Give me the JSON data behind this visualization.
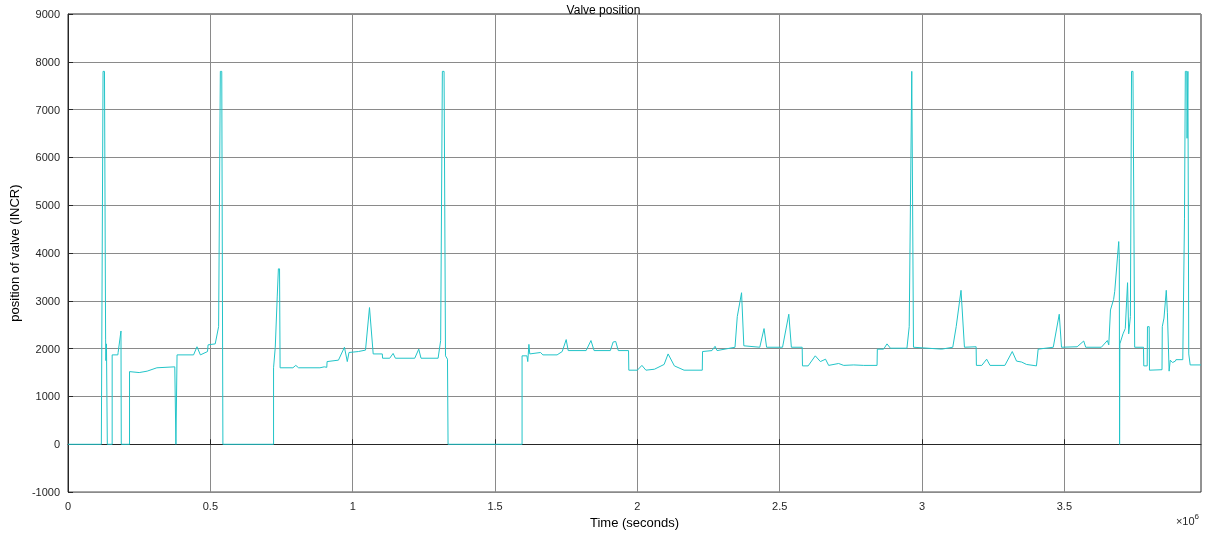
{
  "chart_data": {
    "type": "line",
    "title": "Valve position",
    "xlabel": "Time (seconds)",
    "ylabel": "position of valve (INCR)",
    "annotations": [
      "×10$^{6}$"
    ],
    "xlim": [
      0,
      3.98
    ],
    "xticks": [
      0,
      0.5,
      1,
      1.5,
      2,
      2.5,
      3,
      3.5
    ],
    "ylim": [
      -1000,
      9000
    ],
    "yticks": [
      -1000,
      0,
      1000,
      2000,
      3000,
      4000,
      5000,
      6000,
      7000,
      8000,
      9000
    ],
    "grid": true,
    "marker": "none",
    "line_style": "solid",
    "series": [
      {
        "color": "#22c4c8",
        "x": [
          0,
          0.117,
          0.123,
          0.128,
          0.132,
          0.133,
          0.135,
          0.137,
          0.138,
          0.155,
          0.155,
          0.175,
          0.176,
          0.186,
          0.187,
          0.216,
          0.216,
          0.25,
          0.278,
          0.312,
          0.375,
          0.379,
          0.383,
          0.441,
          0.453,
          0.465,
          0.49,
          0.492,
          0.517,
          0.529,
          0.535,
          0.54,
          0.544,
          0.722,
          0.722,
          0.728,
          0.735,
          0.739,
          0.743,
          0.745,
          0.79,
          0.8,
          0.81,
          0.885,
          0.9,
          0.909,
          0.91,
          0.95,
          0.971,
          0.981,
          0.987,
          1.02,
          1.045,
          1.059,
          1.072,
          1.104,
          1.105,
          1.13,
          1.142,
          1.15,
          1.218,
          1.232,
          1.24,
          1.3,
          1.309,
          1.315,
          1.321,
          1.326,
          1.333,
          1.335,
          1.595,
          1.595,
          1.612,
          1.615,
          1.619,
          1.622,
          1.66,
          1.668,
          1.718,
          1.736,
          1.75,
          1.757,
          1.82,
          1.837,
          1.848,
          1.905,
          1.915,
          1.924,
          1.933,
          1.969,
          1.97,
          2.0,
          2.016,
          2.03,
          2.06,
          2.094,
          2.108,
          2.13,
          2.164,
          2.228,
          2.229,
          2.262,
          2.273,
          2.28,
          2.316,
          2.343,
          2.351,
          2.366,
          2.374,
          2.43,
          2.445,
          2.454,
          2.51,
          2.532,
          2.541,
          2.579,
          2.58,
          2.6,
          2.625,
          2.643,
          2.661,
          2.672,
          2.707,
          2.725,
          2.76,
          2.795,
          2.842,
          2.843,
          2.865,
          2.877,
          2.889,
          2.947,
          2.955,
          2.964,
          2.97,
          3.069,
          3.108,
          3.12,
          3.137,
          3.149,
          3.19,
          3.191,
          3.21,
          3.227,
          3.239,
          3.291,
          3.317,
          3.332,
          3.35,
          3.367,
          3.402,
          3.408,
          3.461,
          3.482,
          3.49,
          3.545,
          3.568,
          3.575,
          3.63,
          3.651,
          3.656,
          3.662,
          3.673,
          3.677,
          3.691,
          3.693,
          3.694,
          3.695,
          3.706,
          3.714,
          3.722,
          3.726,
          3.732,
          3.736,
          3.741,
          3.747,
          3.778,
          3.779,
          3.791,
          3.792,
          3.798,
          3.799,
          3.843,
          3.844,
          3.85,
          3.858,
          3.862,
          3.868,
          3.872,
          3.88,
          3.89,
          3.892,
          3.916,
          3.922,
          3.925,
          3.93,
          3.931,
          3.934,
          3.937,
          3.942,
          3.98
        ],
        "values": [
          0,
          0,
          7800,
          7800,
          2200,
          1750,
          2100,
          2100,
          0,
          0,
          1870,
          1870,
          1920,
          2370,
          0,
          0,
          1520,
          1500,
          1530,
          1600,
          1620,
          0,
          1870,
          1870,
          2040,
          1870,
          1940,
          2080,
          2100,
          2460,
          7800,
          7800,
          0,
          0,
          1600,
          2030,
          3100,
          3670,
          3670,
          1600,
          1600,
          1650,
          1600,
          1600,
          1620,
          1610,
          1730,
          1760,
          2030,
          1730,
          1920,
          1940,
          1970,
          2860,
          1890,
          1890,
          1800,
          1800,
          1900,
          1800,
          1800,
          1990,
          1800,
          1800,
          2170,
          7800,
          7800,
          1850,
          1780,
          0,
          0,
          1850,
          1850,
          1730,
          2090,
          1890,
          1920,
          1870,
          1870,
          1940,
          2190,
          1960,
          1960,
          2170,
          1960,
          1960,
          2140,
          2150,
          1960,
          1960,
          1550,
          1550,
          1650,
          1550,
          1570,
          1670,
          1890,
          1640,
          1550,
          1550,
          1940,
          1960,
          2050,
          1960,
          2000,
          2030,
          2670,
          3170,
          2060,
          2030,
          2420,
          2030,
          2030,
          2720,
          2030,
          2030,
          1640,
          1640,
          1850,
          1730,
          1780,
          1650,
          1690,
          1650,
          1660,
          1650,
          1650,
          1990,
          1990,
          2100,
          2010,
          2010,
          2460,
          7800,
          2030,
          1990,
          2030,
          2460,
          3220,
          2030,
          2040,
          1650,
          1650,
          1780,
          1650,
          1650,
          1940,
          1740,
          1720,
          1670,
          1640,
          1990,
          2030,
          2720,
          2030,
          2040,
          2160,
          2030,
          2030,
          2170,
          2080,
          2810,
          3030,
          3200,
          4240,
          3880,
          0,
          2100,
          2310,
          2420,
          3380,
          2310,
          2670,
          7800,
          7800,
          2030,
          2030,
          1640,
          1640,
          2460,
          2460,
          1550,
          1560,
          2460,
          2640,
          3220,
          2750,
          1530,
          1760,
          1710,
          1740,
          1770,
          1770,
          4730,
          7800,
          7800,
          6400,
          7800,
          1890,
          1660,
          1660
        ]
      }
    ]
  }
}
